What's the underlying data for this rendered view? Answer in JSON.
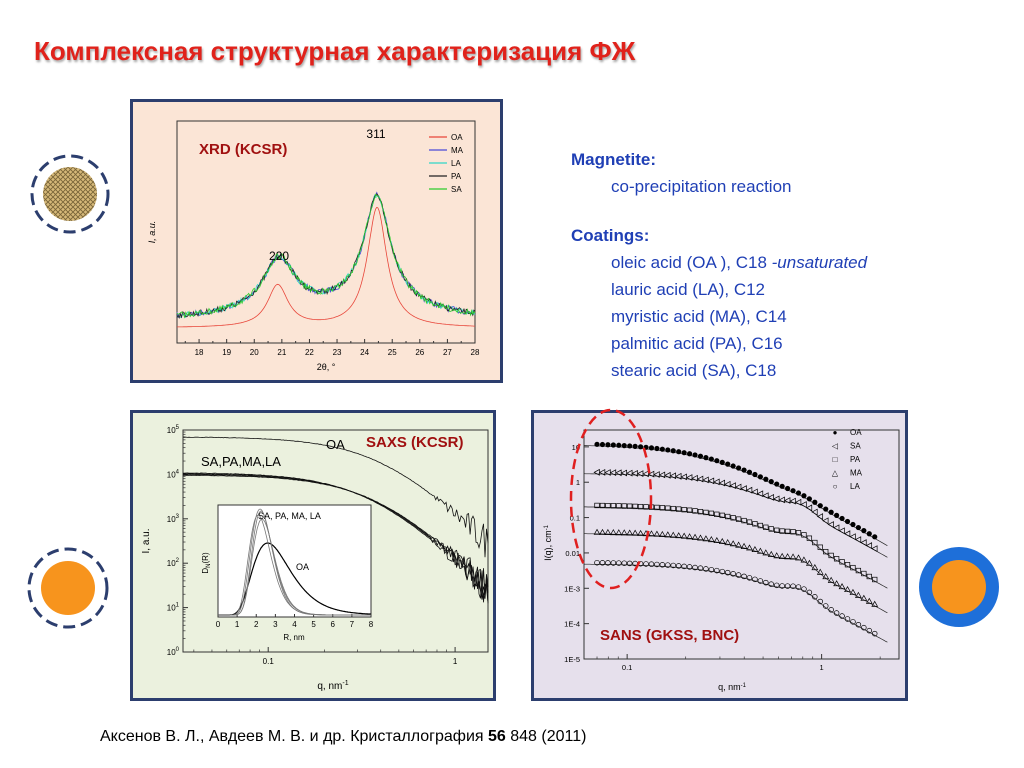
{
  "slide": {
    "title": "Комплексная структурная характеризация ФЖ",
    "citation": {
      "authors": "Аксенов В. Л., Авдеев М. В.  и др. Кристаллография",
      "volume": "56",
      "rest": "848 (2011)"
    }
  },
  "info": {
    "magnetite_heading": "Magnetite:",
    "magnetite_method": "co-precipitation reaction",
    "coatings_heading": "Coatings:",
    "coatings": [
      {
        "text": "oleic acid (OA ), C18",
        "emph": "-unsaturated"
      },
      {
        "text": "lauric acid (LA), C12",
        "emph": ""
      },
      {
        "text": "myristic acid (MA), C14",
        "emph": ""
      },
      {
        "text": "palmitic acid (PA),  C16",
        "emph": ""
      },
      {
        "text": "stearic acid (SA), C18",
        "emph": ""
      }
    ]
  },
  "colors": {
    "title_red": "#e0221b",
    "info_blue": "#1f3fb5",
    "label_red": "#a01010",
    "panel_border": "#2c3e6e",
    "orange": "#f7941d",
    "ring_blue": "#1e6fd9"
  },
  "chart_data": [
    {
      "type": "line",
      "title": "XRD (KCSR)",
      "xlabel": "2θ, °",
      "ylabel": "I, a.u.",
      "xlim": [
        17.2,
        28
      ],
      "xticks": [
        "18",
        "19",
        "20",
        "21",
        "22",
        "23",
        "24",
        "25",
        "26",
        "27",
        "28"
      ],
      "peak_labels": [
        {
          "text": "220",
          "x": 20.9
        },
        {
          "text": "311",
          "x": 24.45
        }
      ],
      "series": [
        {
          "name": "OA",
          "color": "#e8463a"
        },
        {
          "name": "MA",
          "color": "#4a4ad8"
        },
        {
          "name": "LA",
          "color": "#30d8c8"
        },
        {
          "name": "PA",
          "color": "#222222"
        },
        {
          "name": "SA",
          "color": "#2ccc2c"
        }
      ],
      "legend": "top-right"
    },
    {
      "type": "line",
      "title": "SAXS (KCSR)",
      "xlabel": "q, nm",
      "xlabel_sup": "-1",
      "ylabel": "I, a.u.",
      "xscale": "log",
      "yscale": "log",
      "xlim": [
        0.035,
        1.5
      ],
      "ylim": [
        1,
        100000
      ],
      "xticks": [
        "0.1",
        "1"
      ],
      "yticks": [
        {
          "base": "10",
          "exp": "5"
        },
        {
          "base": "10",
          "exp": "4"
        },
        {
          "base": "10",
          "exp": "3"
        },
        {
          "base": "10",
          "exp": "2"
        },
        {
          "base": "10",
          "exp": "1"
        },
        {
          "base": "10",
          "exp": "0"
        }
      ],
      "curve_labels": [
        "OA",
        "SA,PA,MA,LA"
      ],
      "series": [
        {
          "name": "OA",
          "plateau": 70000
        },
        {
          "name": "SA,PA,MA,LA",
          "plateau": 11000
        }
      ],
      "inset": {
        "xlabel": "R, nm",
        "ylabel": "D",
        "ylabel_sub": "N",
        "ylabel_tail": "(R)",
        "xlim": [
          0,
          8
        ],
        "xticks": [
          "0",
          "1",
          "2",
          "3",
          "4",
          "5",
          "6",
          "7",
          "8"
        ],
        "labels": [
          "SA, PA, MA, LA",
          "OA"
        ],
        "series": [
          {
            "name": "OA",
            "peak_R": 2.6
          },
          {
            "name": "SA, PA, MA, LA",
            "peak_R": 2.2
          }
        ]
      }
    },
    {
      "type": "scatter",
      "title": "SANS (GKSS, BNC)",
      "xlabel": "q, nm",
      "xlabel_sup": "-1",
      "ylabel": "I(q), cm",
      "ylabel_sup": "-1",
      "xscale": "log",
      "yscale": "log",
      "xlim": [
        0.06,
        2.5
      ],
      "ylim": [
        1e-05,
        30
      ],
      "xticks": [
        "0.1",
        "1"
      ],
      "yticks": [
        "10",
        "1",
        "0.1",
        "0.01",
        "1E-3",
        "1E-4",
        "1E-5"
      ],
      "series": [
        {
          "name": "OA",
          "marker": "●",
          "plateau": 13
        },
        {
          "name": "SA",
          "marker": "◁",
          "plateau": 2
        },
        {
          "name": "PA",
          "marker": "□",
          "plateau": 0.23
        },
        {
          "name": "MA",
          "marker": "△",
          "plateau": 0.04
        },
        {
          "name": "LA",
          "marker": "○",
          "plateau": 0.0055
        }
      ],
      "legend": "top-right"
    }
  ]
}
